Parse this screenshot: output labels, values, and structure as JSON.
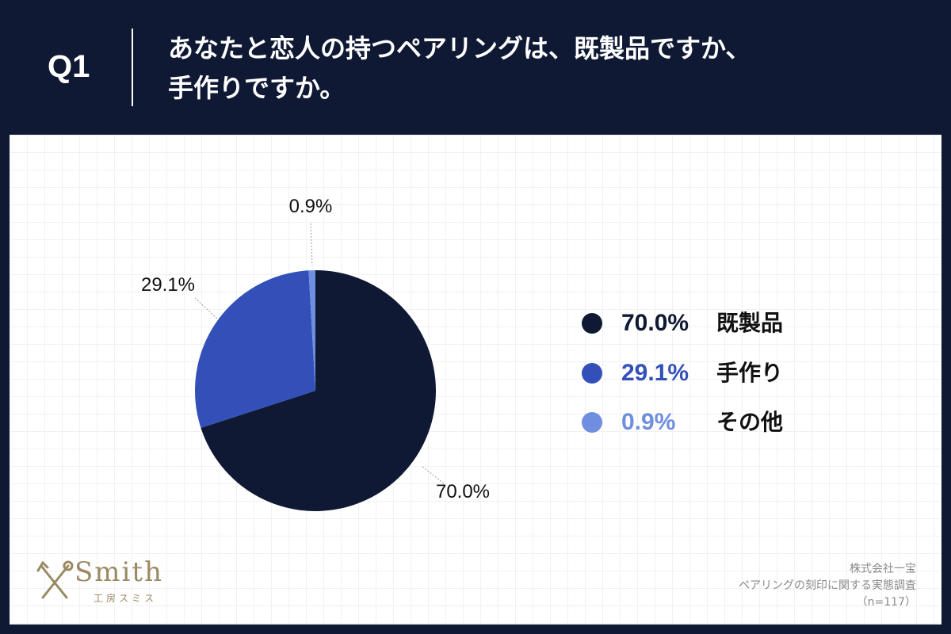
{
  "header": {
    "q_label": "Q1",
    "question_line1": "あなたと恋人の持つペアリングは、既製品ですか、",
    "question_line2": "手作りですか。"
  },
  "chart_data": {
    "type": "pie",
    "slices": [
      {
        "label": "既製品",
        "value": 70.0,
        "display": "70.0%",
        "color": "#0f1933"
      },
      {
        "label": "手作り",
        "value": 29.1,
        "display": "29.1%",
        "color": "#3350b8"
      },
      {
        "label": "その他",
        "value": 0.9,
        "display": "0.9%",
        "color": "#6f8ee0"
      }
    ],
    "legend_position": "right"
  },
  "logo": {
    "wordmark": "Smith",
    "subtitle": "工房スミス",
    "accent_color": "#9a8a63"
  },
  "source": {
    "company": "株式会社一宝",
    "survey": "ペアリングの刻印に関する実態調査",
    "sample": "（n=117）"
  },
  "colors": {
    "header_bg": "#0f1933",
    "panel_bg": "#ffffff"
  }
}
